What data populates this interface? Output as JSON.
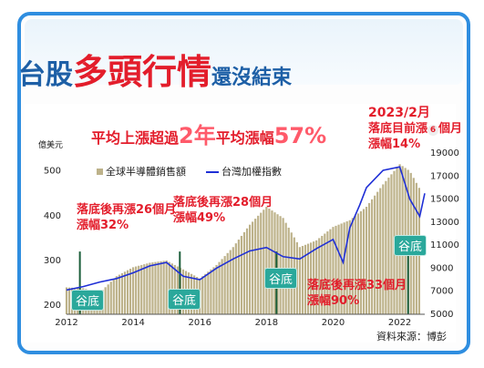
{
  "title": {
    "prefix": "台股",
    "emphasis": "多頭行情",
    "suffix": "還沒結束"
  },
  "headline": {
    "part1": "平均上漲超過",
    "years": "2年",
    "part2": "平均漲幅",
    "pct": "57%"
  },
  "annotations": {
    "a1_l1": "落底後再漲26個月",
    "a1_l2": "漲幅32%",
    "a2_l1": "落底後再漲28個月",
    "a2_l2": "漲幅49%",
    "a3_l1": "落底後再漲33個月",
    "a3_l2": "漲幅90%",
    "a4_l1": "2023/2月",
    "a4_l2": "落底目前漲",
    "a4_num": "6",
    "a4_l3": "個月",
    "a4_l4": "漲幅14%"
  },
  "trough_label": "谷底",
  "source": "資料來源：博彭",
  "colors": {
    "bar": "#bdb28a",
    "line": "#1f2fd6",
    "title_blue": "#1d5fa6",
    "red": "#e31d2b",
    "trough": "#2aa89b",
    "border": "#2f8ee0"
  },
  "chart_data": {
    "type": "bar",
    "left_axis_unit": "億美元",
    "y_left_ticks": [
      "200",
      "300",
      "400",
      "500"
    ],
    "y_right_ticks": [
      "5000",
      "7000",
      "9000",
      "11000",
      "13000",
      "15000",
      "17000",
      "19000"
    ],
    "x_ticks": [
      "2012",
      "2014",
      "2016",
      "2018",
      "2020",
      "2022"
    ],
    "ylim_left": [
      180,
      540
    ],
    "ylim_right": [
      5000,
      19000
    ],
    "xlim": [
      2012.0,
      2022.75
    ],
    "series": [
      {
        "name": "全球半導體銷售額",
        "type": "bar",
        "axis": "left",
        "points": [
          [
            2012.0,
            240
          ],
          [
            2012.5,
            238
          ],
          [
            2013.0,
            228
          ],
          [
            2013.5,
            265
          ],
          [
            2014.0,
            285
          ],
          [
            2014.5,
            295
          ],
          [
            2015.0,
            300
          ],
          [
            2015.5,
            280
          ],
          [
            2016.0,
            260
          ],
          [
            2016.5,
            290
          ],
          [
            2017.0,
            330
          ],
          [
            2017.5,
            380
          ],
          [
            2018.0,
            420
          ],
          [
            2018.5,
            395
          ],
          [
            2019.0,
            330
          ],
          [
            2019.5,
            345
          ],
          [
            2020.0,
            375
          ],
          [
            2020.5,
            390
          ],
          [
            2021.0,
            420
          ],
          [
            2021.5,
            470
          ],
          [
            2022.0,
            515
          ],
          [
            2022.3,
            500
          ],
          [
            2022.6,
            460
          ]
        ]
      },
      {
        "name": "台灣加權指數",
        "type": "line",
        "axis": "right",
        "points": [
          [
            2012.0,
            7100
          ],
          [
            2012.5,
            7400
          ],
          [
            2013.0,
            7800
          ],
          [
            2013.5,
            8100
          ],
          [
            2014.0,
            8600
          ],
          [
            2014.5,
            9200
          ],
          [
            2015.0,
            9500
          ],
          [
            2015.5,
            8300
          ],
          [
            2016.0,
            8000
          ],
          [
            2016.5,
            9000
          ],
          [
            2017.0,
            9800
          ],
          [
            2017.5,
            10500
          ],
          [
            2018.0,
            10800
          ],
          [
            2018.5,
            10000
          ],
          [
            2019.0,
            9800
          ],
          [
            2019.5,
            10700
          ],
          [
            2020.0,
            11500
          ],
          [
            2020.3,
            9500
          ],
          [
            2020.5,
            12500
          ],
          [
            2020.8,
            14500
          ],
          [
            2021.0,
            16000
          ],
          [
            2021.5,
            17500
          ],
          [
            2022.0,
            17800
          ],
          [
            2022.3,
            15000
          ],
          [
            2022.6,
            13500
          ],
          [
            2022.75,
            15500
          ]
        ]
      }
    ]
  }
}
